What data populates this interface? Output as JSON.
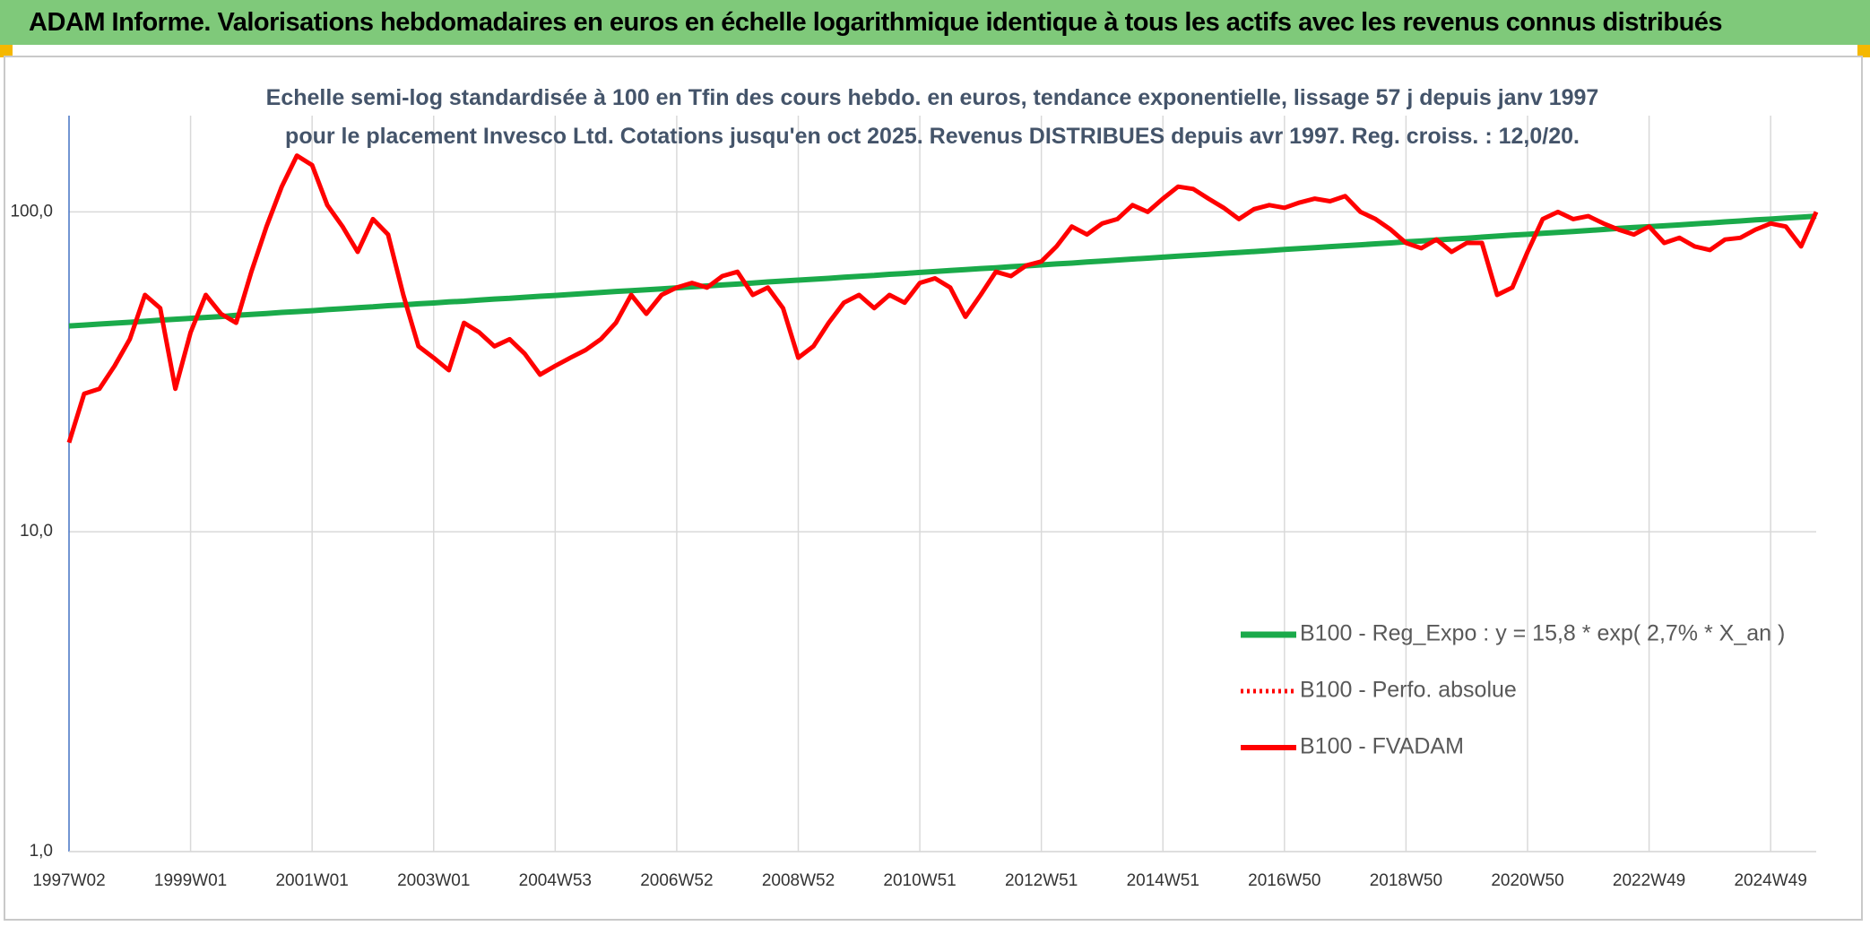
{
  "header": {
    "title": "ADAM Informe. Valorisations hebdomadaires en euros en échelle logarithmique identique à tous les actifs avec les revenus connus distribués"
  },
  "chart_data": {
    "type": "line",
    "subtitle": "Echelle semi-log standardisée à 100 en Tfin des cours hebdo. en euros, tendance exponentielle, lissage 57 j depuis janv 1997 pour le placement Invesco Ltd. Cotations jusqu'en oct 2025. Revenus DISTRIBUES depuis avr 1997. Reg. croiss. : 12,0/20.",
    "log_scale": true,
    "grid": true,
    "legend_position": "right",
    "ylim": [
      1,
      200
    ],
    "yticks": [
      {
        "value": 1,
        "label": "1,0"
      },
      {
        "value": 10,
        "label": "10,0"
      },
      {
        "value": 100,
        "label": "100,0"
      }
    ],
    "categories": [
      "1997W02",
      null,
      null,
      null,
      null,
      null,
      null,
      null,
      "1999W01",
      null,
      null,
      null,
      null,
      null,
      null,
      null,
      "2001W01",
      null,
      null,
      null,
      null,
      null,
      null,
      null,
      "2003W01",
      null,
      null,
      null,
      null,
      null,
      null,
      null,
      "2004W53",
      null,
      null,
      null,
      null,
      null,
      null,
      null,
      "2006W52",
      null,
      null,
      null,
      null,
      null,
      null,
      null,
      "2008W52",
      null,
      null,
      null,
      null,
      null,
      null,
      null,
      "2010W51",
      null,
      null,
      null,
      null,
      null,
      null,
      null,
      "2012W51",
      null,
      null,
      null,
      null,
      null,
      null,
      null,
      "2014W51",
      null,
      null,
      null,
      null,
      null,
      null,
      null,
      "2016W50",
      null,
      null,
      null,
      null,
      null,
      null,
      null,
      "2018W50",
      null,
      null,
      null,
      null,
      null,
      null,
      null,
      "2020W50",
      null,
      null,
      null,
      null,
      null,
      null,
      null,
      "2022W49",
      null,
      null,
      null,
      null,
      null,
      null,
      null,
      "2024W49",
      null,
      null,
      null
    ],
    "series": [
      {
        "name": "B100 - Reg_Expo : y = 15,8 * exp( 2,7% *  X_an )",
        "color": "#1aaa4a",
        "style": "solid",
        "width": 6,
        "values": [
          44.0,
          44.3,
          44.6,
          44.9,
          45.2,
          45.5,
          45.9,
          46.2,
          46.5,
          46.8,
          47.1,
          47.5,
          47.8,
          48.1,
          48.5,
          48.8,
          49.1,
          49.5,
          49.8,
          50.2,
          50.5,
          50.9,
          51.2,
          51.6,
          51.9,
          52.3,
          52.6,
          53.0,
          53.4,
          53.7,
          54.1,
          54.5,
          54.8,
          55.2,
          55.6,
          56.0,
          56.4,
          56.7,
          57.1,
          57.5,
          57.9,
          58.3,
          58.7,
          59.1,
          59.5,
          59.9,
          60.4,
          60.8,
          61.2,
          61.6,
          62.0,
          62.5,
          62.9,
          63.3,
          63.8,
          64.2,
          64.7,
          65.1,
          65.6,
          66.0,
          66.5,
          66.9,
          67.4,
          67.8,
          68.3,
          68.8,
          69.2,
          69.7,
          70.2,
          70.7,
          71.2,
          71.7,
          72.2,
          72.7,
          73.2,
          73.7,
          74.2,
          74.7,
          75.2,
          75.7,
          76.3,
          76.8,
          77.3,
          77.9,
          78.4,
          78.9,
          79.5,
          80.0,
          80.6,
          81.1,
          81.7,
          82.3,
          82.8,
          83.4,
          84.0,
          84.6,
          85.1,
          85.7,
          86.3,
          86.9,
          87.5,
          88.1,
          88.8,
          89.4,
          89.9,
          90.5,
          91.1,
          91.8,
          92.4,
          93.1,
          93.7,
          94.4,
          95.0,
          95.7,
          96.3,
          97.0
        ]
      },
      {
        "name": "B100 - Perfo. absolue",
        "color": "#ff0000",
        "style": "dotted",
        "width": 4,
        "values": [
          null,
          null,
          null,
          null,
          null,
          null,
          null,
          null,
          null,
          null,
          null,
          null,
          null,
          null,
          null,
          null,
          null,
          null,
          null,
          null,
          null,
          null,
          null,
          null,
          null,
          null,
          null,
          null,
          null,
          null,
          null,
          null,
          null,
          null,
          null,
          null,
          null,
          null,
          null,
          null,
          null,
          null,
          null,
          null,
          null,
          null,
          null,
          null,
          null,
          null,
          null,
          null,
          null,
          null,
          null,
          null,
          null,
          null,
          null,
          null,
          null,
          null,
          null,
          null,
          null,
          null,
          null,
          null,
          null,
          null,
          null,
          null,
          null,
          null,
          null,
          null,
          null,
          null,
          null,
          null,
          null,
          null,
          null,
          null,
          null,
          null,
          null,
          null,
          null,
          null,
          null,
          null,
          null,
          null,
          null,
          null,
          null,
          null,
          null,
          null,
          null,
          null,
          null,
          null,
          null,
          null,
          null,
          null,
          null,
          null,
          null,
          null,
          null,
          null,
          null,
          null
        ]
      },
      {
        "name": "B100 - FVADAM",
        "color": "#ff0000",
        "style": "solid",
        "width": 5,
        "values": [
          19,
          27,
          28,
          33,
          40,
          55,
          50,
          28,
          42,
          55,
          48,
          45,
          65,
          90,
          120,
          150,
          140,
          105,
          90,
          75,
          95,
          85,
          55,
          38,
          35,
          32,
          45,
          42,
          38,
          40,
          36,
          31,
          33,
          35,
          37,
          40,
          45,
          55,
          48,
          55,
          58,
          60,
          58,
          63,
          65,
          55,
          58,
          50,
          35,
          38,
          45,
          52,
          55,
          50,
          55,
          52,
          60,
          62,
          58,
          47,
          55,
          65,
          63,
          68,
          70,
          78,
          90,
          85,
          92,
          95,
          105,
          100,
          110,
          120,
          118,
          110,
          103,
          95,
          102,
          105,
          103,
          107,
          110,
          108,
          112,
          100,
          95,
          88,
          80,
          77,
          82,
          75,
          80,
          80,
          55,
          58,
          75,
          95,
          100,
          95,
          97,
          92,
          88,
          85,
          90,
          80,
          83,
          78,
          76,
          82,
          83,
          88,
          92,
          90,
          78,
          100
        ]
      }
    ]
  }
}
